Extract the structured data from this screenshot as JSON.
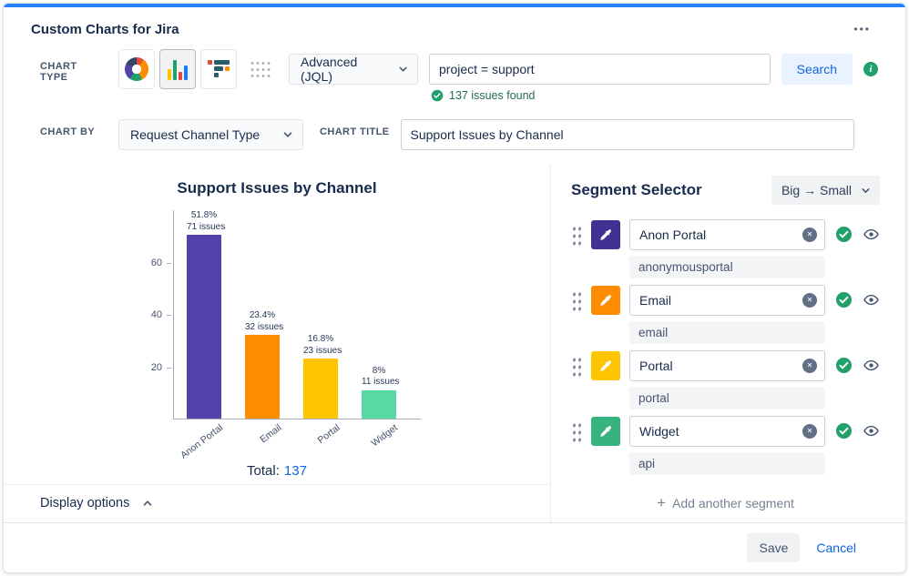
{
  "colors": {
    "accent": "#2684FF",
    "link": "#0C66E4",
    "success": "#22A06B"
  },
  "header": {
    "title": "Custom Charts for Jira",
    "more_glyph": "•••"
  },
  "controls": {
    "chart_type_label": "CHART TYPE",
    "jql_mode_value": "Advanced (JQL)",
    "jql_query": "project = support",
    "search_label": "Search",
    "issues_found": "137 issues found",
    "info_glyph": "i",
    "chart_by_label": "CHART BY",
    "chart_by_value": "Request Channel Type",
    "chart_title_label": "CHART TITLE",
    "chart_title_value": "Support Issues by Channel"
  },
  "chart_data": {
    "type": "bar",
    "title": "Support Issues by Channel",
    "categories": [
      "Anon Portal",
      "Email",
      "Portal",
      "Widget"
    ],
    "values": [
      71,
      32,
      23,
      11
    ],
    "percent_labels": [
      "51.8%",
      "23.4%",
      "16.8%",
      "8%"
    ],
    "count_labels": [
      "71 issues",
      "32 issues",
      "23 issues",
      "11 issues"
    ],
    "colors": [
      "#5243AA",
      "#FF8B00",
      "#FFC400",
      "#57D9A3"
    ],
    "yticks": [
      20,
      40,
      60
    ],
    "ylim": [
      0,
      80
    ],
    "xlabel": "",
    "ylabel": "",
    "grid": false,
    "legend": "none",
    "total_label": "Total:",
    "total_value": "137"
  },
  "display_options": {
    "label": "Display options"
  },
  "segment_selector": {
    "title": "Segment Selector",
    "sort_value": "Big → Small",
    "clear_glyph": "✕",
    "plus_glyph": "+",
    "add_label": "Add another segment",
    "segments": [
      {
        "name": "Anon Portal",
        "value": "anonymousportal",
        "color": "#403294"
      },
      {
        "name": "Email",
        "value": "email",
        "color": "#FF8B00"
      },
      {
        "name": "Portal",
        "value": "portal",
        "color": "#FFC400"
      },
      {
        "name": "Widget",
        "value": "api",
        "color": "#36B37E"
      }
    ]
  },
  "footer": {
    "save_label": "Save",
    "cancel_label": "Cancel"
  }
}
